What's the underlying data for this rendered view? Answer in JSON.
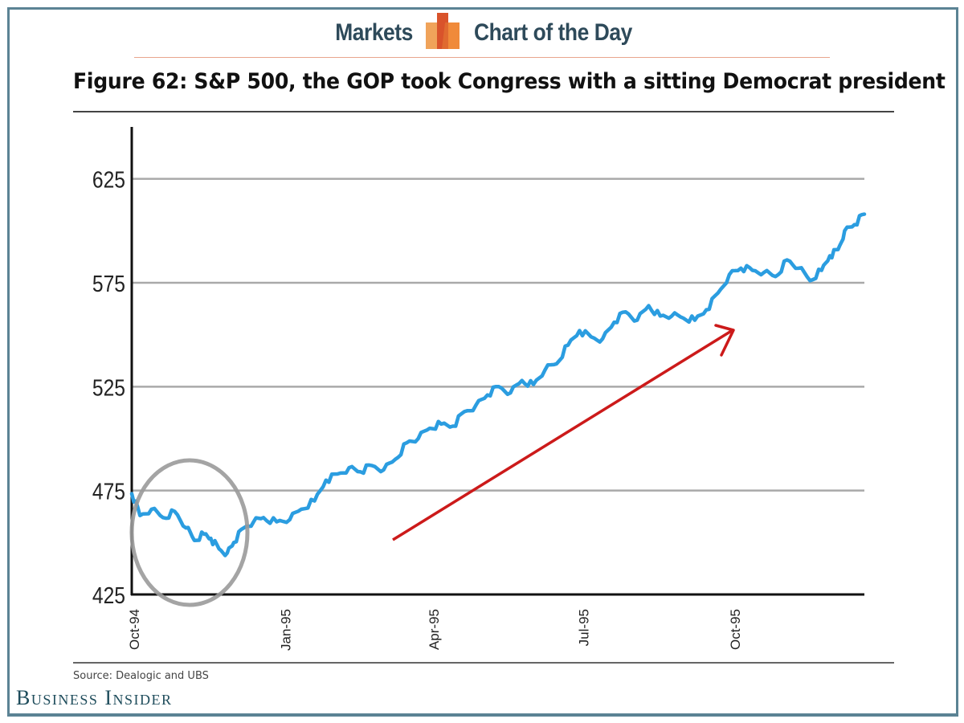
{
  "header": {
    "left_label": "Markets",
    "right_label": "Chart of the Day",
    "logo_icon": "bar-chart-logo-icon",
    "colors": {
      "text": "#2e4a5a",
      "logo_light": "#f0a35a",
      "logo_dark": "#d9532b",
      "logo_mid": "#f08a3a",
      "rule": "#e8a58d"
    }
  },
  "footer": {
    "source": "Source:  Dealogic and UBS",
    "brand": "Business Insider"
  },
  "annotations": {
    "circle": "highlight around late-1994 dip",
    "arrow": "red upward trend arrow",
    "arrow_color": "#cc1a1a",
    "circle_color": "#999999"
  },
  "chart_data": {
    "type": "line",
    "title": "Figure 62: S&P 500,  the GOP took Congress with a sitting Democrat president",
    "xlabel": "",
    "ylabel": "",
    "ylim": [
      425,
      650
    ],
    "yticks": [
      425,
      475,
      525,
      575,
      625
    ],
    "ytick_labels": [
      "425",
      "475",
      "525",
      "575",
      "625"
    ],
    "xlim": [
      "1994-10-01",
      "1995-12-20"
    ],
    "xticks": [
      "1994-10-01",
      "1995-01-01",
      "1995-04-01",
      "1995-07-01",
      "1995-10-01"
    ],
    "xtick_labels": [
      "Oct-94",
      "Jan-95",
      "Apr-95",
      "Jul-95",
      "Oct-95"
    ],
    "grid": "horizontal",
    "legend": "none",
    "line_color": "#2b9de0",
    "series": [
      {
        "name": "S&P 500",
        "x": [
          "1994-10-01",
          "1994-10-06",
          "1994-10-13",
          "1994-10-20",
          "1994-10-27",
          "1994-11-03",
          "1994-11-08",
          "1994-11-14",
          "1994-11-18",
          "1994-11-23",
          "1994-11-28",
          "1994-12-02",
          "1994-12-08",
          "1994-12-14",
          "1994-12-20",
          "1994-12-28",
          "1995-01-05",
          "1995-01-12",
          "1995-01-20",
          "1995-01-27",
          "1995-02-03",
          "1995-02-10",
          "1995-02-17",
          "1995-02-24",
          "1995-03-03",
          "1995-03-10",
          "1995-03-17",
          "1995-03-24",
          "1995-03-31",
          "1995-04-07",
          "1995-04-14",
          "1995-04-21",
          "1995-04-28",
          "1995-05-05",
          "1995-05-12",
          "1995-05-19",
          "1995-05-26",
          "1995-06-02",
          "1995-06-09",
          "1995-06-16",
          "1995-06-23",
          "1995-06-30",
          "1995-07-07",
          "1995-07-14",
          "1995-07-21",
          "1995-07-28",
          "1995-08-04",
          "1995-08-11",
          "1995-08-18",
          "1995-08-25",
          "1995-09-01",
          "1995-09-08",
          "1995-09-15",
          "1995-09-22",
          "1995-09-29",
          "1995-10-06",
          "1995-10-13",
          "1995-10-20",
          "1995-10-27",
          "1995-11-03",
          "1995-11-10",
          "1995-11-17",
          "1995-11-24",
          "1995-11-29",
          "1995-12-04",
          "1995-12-08",
          "1995-12-14",
          "1995-12-20"
        ],
        "values": [
          473.5,
          463,
          466,
          462,
          465,
          457,
          451,
          454,
          452,
          447,
          445,
          450,
          457,
          460,
          462,
          460,
          461,
          466,
          470,
          480,
          483,
          486,
          484,
          487,
          485,
          490,
          498,
          500,
          505,
          507,
          506,
          513,
          516,
          521,
          525,
          522,
          528,
          526,
          533,
          536,
          545,
          552,
          549,
          548,
          556,
          561,
          557,
          564,
          559,
          559,
          558,
          557,
          562,
          570,
          579,
          582,
          581,
          580,
          578,
          586,
          582,
          576,
          581,
          588,
          591,
          600,
          603,
          608
        ]
      }
    ],
    "data_note": "values estimated from gridlines"
  }
}
